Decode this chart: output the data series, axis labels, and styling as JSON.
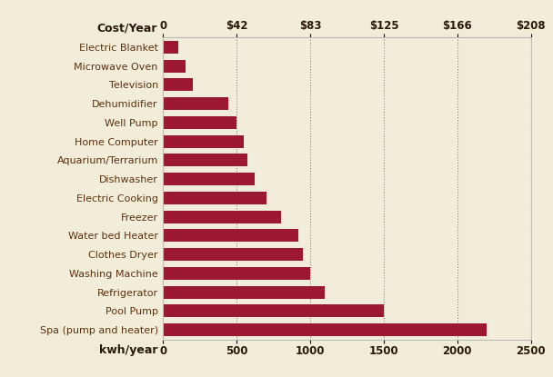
{
  "categories": [
    "Spa (pump and heater)",
    "Pool Pump",
    "Refrigerator",
    "Washing Machine",
    "Clothes Dryer",
    "Water bed Heater",
    "Freezer",
    "Electric Cooking",
    "Dishwasher",
    "Aquarium/Terrarium",
    "Home Computer",
    "Well Pump",
    "Dehumidifier",
    "Television",
    "Microwave Oven",
    "Electric Blanket"
  ],
  "values": [
    2200,
    1500,
    1100,
    1000,
    950,
    920,
    800,
    700,
    620,
    575,
    550,
    500,
    440,
    200,
    155,
    100
  ],
  "bar_color": "#9B1830",
  "background_color": "#F2EDD8",
  "plot_bg_color": "#F2EDD8",
  "cost_label": "Cost/Year",
  "kwh_label": "kwh/year",
  "top_tick_labels": [
    "0",
    "$42",
    "$83",
    "$125",
    "$166",
    "$208"
  ],
  "bottom_tick_labels": [
    "0",
    "500",
    "1000",
    "1500",
    "2000",
    "2500"
  ],
  "tick_values": [
    0,
    500,
    1000,
    1500,
    2000,
    2500
  ],
  "xlim": [
    0,
    2500
  ],
  "grid_color": "#888888",
  "text_color": "#5C3010",
  "tick_label_color": "#2A1A08",
  "border_color": "#BBBBBB"
}
